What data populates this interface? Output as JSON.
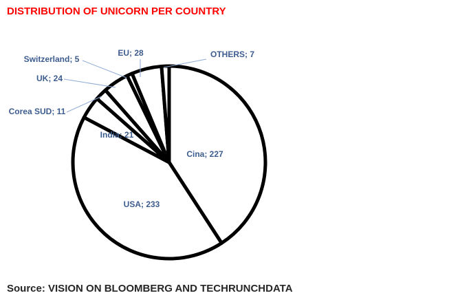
{
  "chart_data": {
    "type": "pie",
    "title": "DISTRIBUTION OF UNICORN PER COUNTRY",
    "values": [
      227,
      233,
      21,
      11,
      24,
      5,
      28,
      7
    ],
    "value_labels": [
      "Cina; 227",
      "USA; 233",
      "India; 21",
      "Corea SUD; 11",
      "UK; 24",
      "Switzerland; 5",
      "EU; 28",
      "OTHERS; 7"
    ],
    "color": "#ffffff",
    "source": "Source: VISION ON BLOOMBERG AND TECHRUNCHDATA"
  }
}
